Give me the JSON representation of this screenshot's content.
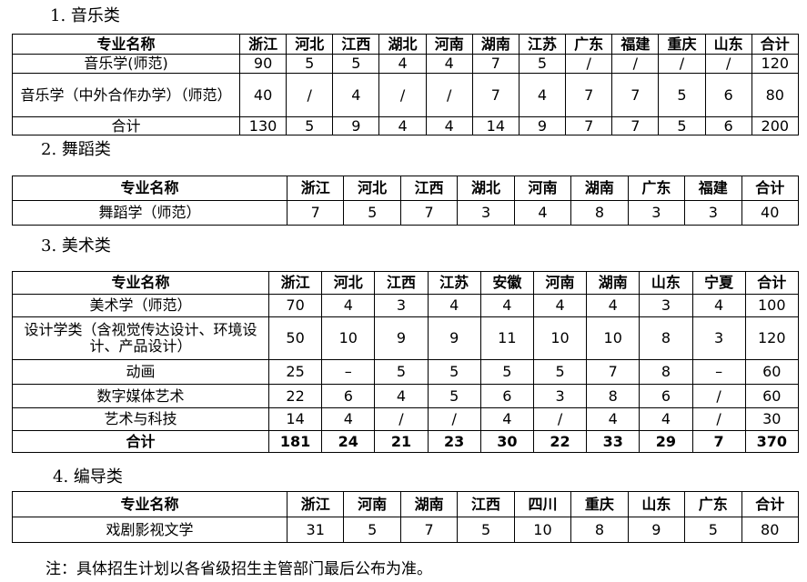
{
  "sections": [
    {
      "title": "1. 音乐类",
      "header": [
        "专业名称",
        "浙江",
        "河北",
        "江西",
        "湖北",
        "河南",
        "湖南",
        "江苏",
        "广东",
        "福建",
        "重庆",
        "山东",
        "合计"
      ],
      "rows": [
        [
          "音乐学(师范)",
          "90",
          "5",
          "5",
          "4",
          "4",
          "7",
          "5",
          "/",
          "/",
          "/",
          "/",
          "120"
        ],
        [
          "音乐学（中外合作办学）（师范）",
          "40",
          "/",
          "4",
          "/",
          "/",
          "7",
          "4",
          "7",
          "7",
          "5",
          "6",
          "80"
        ],
        [
          "合计",
          "130",
          "5",
          "9",
          "4",
          "4",
          "14",
          "9",
          "7",
          "7",
          "5",
          "6",
          "200"
        ]
      ]
    },
    {
      "title": "2. 舞蹈类",
      "header": [
        "专业名称",
        "浙江",
        "河北",
        "江西",
        "湖北",
        "河南",
        "湖南",
        "广东",
        "福建",
        "合计"
      ],
      "rows": [
        [
          "舞蹈学（师范）",
          "7",
          "5",
          "7",
          "3",
          "4",
          "8",
          "3",
          "3",
          "40"
        ]
      ]
    },
    {
      "title": "3. 美术类",
      "header": [
        "专业名称",
        "浙江",
        "河北",
        "江西",
        "江苏",
        "安徽",
        "河南",
        "湖南",
        "山东",
        "宁夏",
        "合计"
      ],
      "rows": [
        [
          "美术学（师范）",
          "70",
          "4",
          "3",
          "4",
          "4",
          "4",
          "4",
          "3",
          "4",
          "100"
        ],
        [
          "设计学类（含视觉传达设计、环境设计、产品设计）",
          "50",
          "10",
          "9",
          "9",
          "11",
          "10",
          "10",
          "8",
          "3",
          "120"
        ],
        [
          "动画",
          "25",
          "–",
          "5",
          "5",
          "5",
          "5",
          "7",
          "8",
          "–",
          "60"
        ],
        [
          "数字媒体艺术",
          "22",
          "6",
          "4",
          "5",
          "6",
          "3",
          "8",
          "6",
          "/",
          "60"
        ],
        [
          "艺术与科技",
          "14",
          "4",
          "/",
          "/",
          "4",
          "/",
          "4",
          "4",
          "/",
          "30"
        ],
        [
          "合计",
          "181",
          "24",
          "21",
          "23",
          "30",
          "22",
          "33",
          "29",
          "7",
          "370"
        ]
      ]
    },
    {
      "title": "4. 编导类",
      "header": [
        "专业名称",
        "浙江",
        "河南",
        "湖南",
        "江西",
        "四川",
        "重庆",
        "山东",
        "广东",
        "合计"
      ],
      "rows": [
        [
          "戏剧影视文学",
          "31",
          "5",
          "7",
          "5",
          "10",
          "8",
          "9",
          "5",
          "80"
        ]
      ]
    }
  ],
  "note": "注：具体招生计划以各省级招生主管部门最后公布为准。"
}
